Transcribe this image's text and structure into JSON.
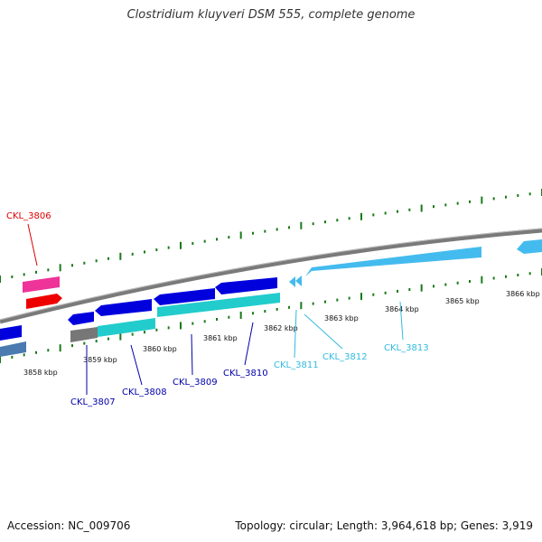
{
  "title": "Clostridium kluyveri DSM 555, complete genome",
  "footer": {
    "accession": "Accession: NC_009706",
    "summary": "Topology: circular; Length: 3,964,618 bp; Genes: 3,919"
  },
  "colors": {
    "backbone": "#888888",
    "dot_track": "#1a7a1a",
    "blue_gene": "#0000dd",
    "cyan_gene": "#22cccc",
    "light_blue_gene": "#44bbee",
    "steel_gene": "#4a7ab0",
    "red_label": "#dd0000",
    "pink_gene": "#ee3399",
    "red_gene": "#ee0000",
    "gray_gene": "#777777",
    "navy_label": "#0000aa",
    "cyan_label": "#33bbdd"
  },
  "tick_labels": [
    "3858 kbp",
    "3859 kbp",
    "3860 kbp",
    "3861 kbp",
    "3862 kbp",
    "3863 kbp",
    "3864 kbp",
    "3865 kbp",
    "3866 kbp"
  ],
  "gene_labels": [
    "CKL_3806",
    "CKL_3807",
    "CKL_3808",
    "CKL_3809",
    "CKL_3810",
    "CKL_3811",
    "CKL_3812",
    "CKL_3813"
  ]
}
